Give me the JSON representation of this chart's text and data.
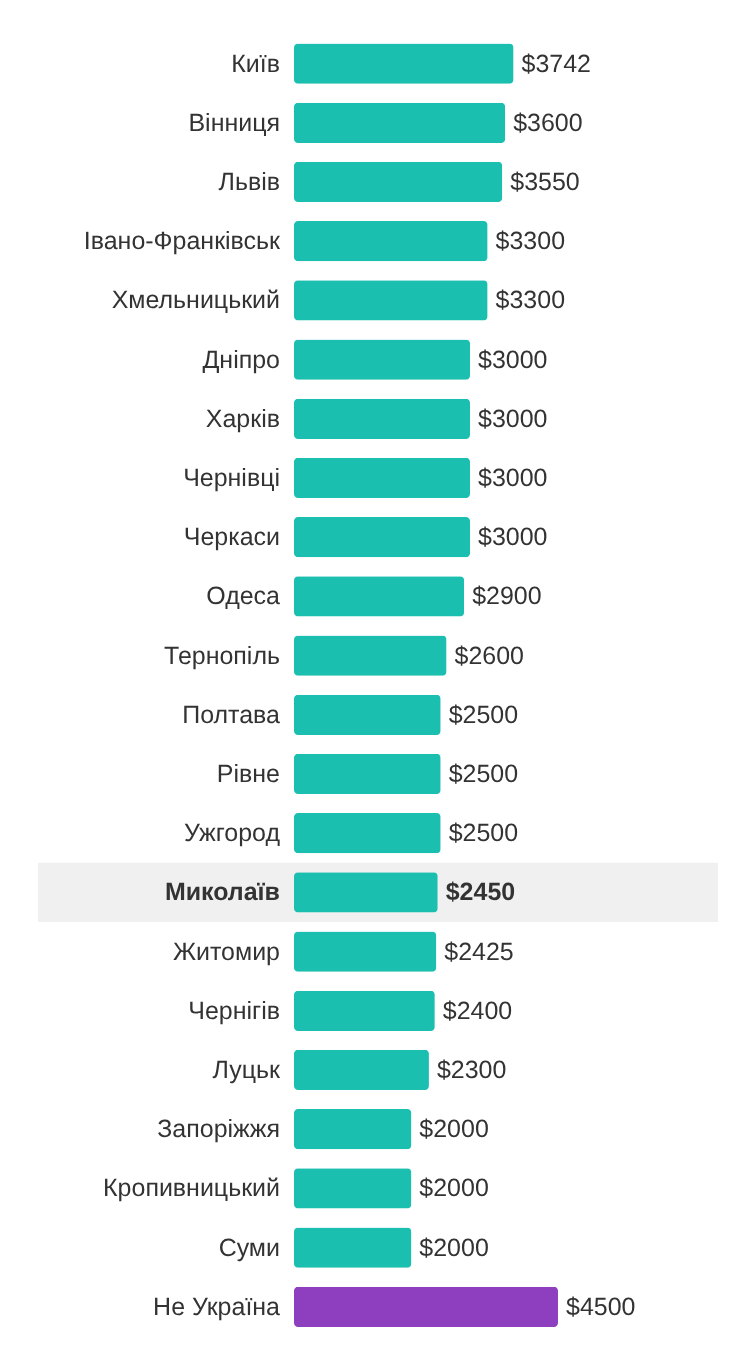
{
  "chart_data": {
    "type": "bar",
    "categories": [
      "Київ",
      "Вінниця",
      "Львів",
      "Івано-Франківськ",
      "Хмельницький",
      "Дніпро",
      "Харків",
      "Чернівці",
      "Черкаси",
      "Одеса",
      "Тернопіль",
      "Полтава",
      "Рівне",
      "Ужгород",
      "Миколаїв",
      "Житомир",
      "Чернігів",
      "Луцьк",
      "Запоріжжя",
      "Кропивницький",
      "Суми",
      "Не Україна"
    ],
    "values": [
      3742,
      3600,
      3550,
      3300,
      3300,
      3000,
      3000,
      3000,
      3000,
      2900,
      2600,
      2500,
      2500,
      2500,
      2450,
      2425,
      2400,
      2300,
      2000,
      2000,
      2000,
      4500
    ],
    "value_labels": [
      "$3742",
      "$3600",
      "$3550",
      "$3300",
      "$3300",
      "$3000",
      "$3000",
      "$3000",
      "$3000",
      "$2900",
      "$2600",
      "$2500",
      "$2500",
      "$2500",
      "$2450",
      "$2425",
      "$2400",
      "$2300",
      "$2000",
      "$2000",
      "$2000",
      "$4500"
    ],
    "colors": [
      "#1abfb0",
      "#1abfb0",
      "#1abfb0",
      "#1abfb0",
      "#1abfb0",
      "#1abfb0",
      "#1abfb0",
      "#1abfb0",
      "#1abfb0",
      "#1abfb0",
      "#1abfb0",
      "#1abfb0",
      "#1abfb0",
      "#1abfb0",
      "#1abfb0",
      "#1abfb0",
      "#1abfb0",
      "#1abfb0",
      "#1abfb0",
      "#1abfb0",
      "#1abfb0",
      "#8e3fbf"
    ],
    "bands": [
      {
        "axis": "y",
        "from": "Миколаїв",
        "to": "Миколаїв",
        "color": "#f0f0f0"
      }
    ],
    "orientation": "horizontal"
  }
}
